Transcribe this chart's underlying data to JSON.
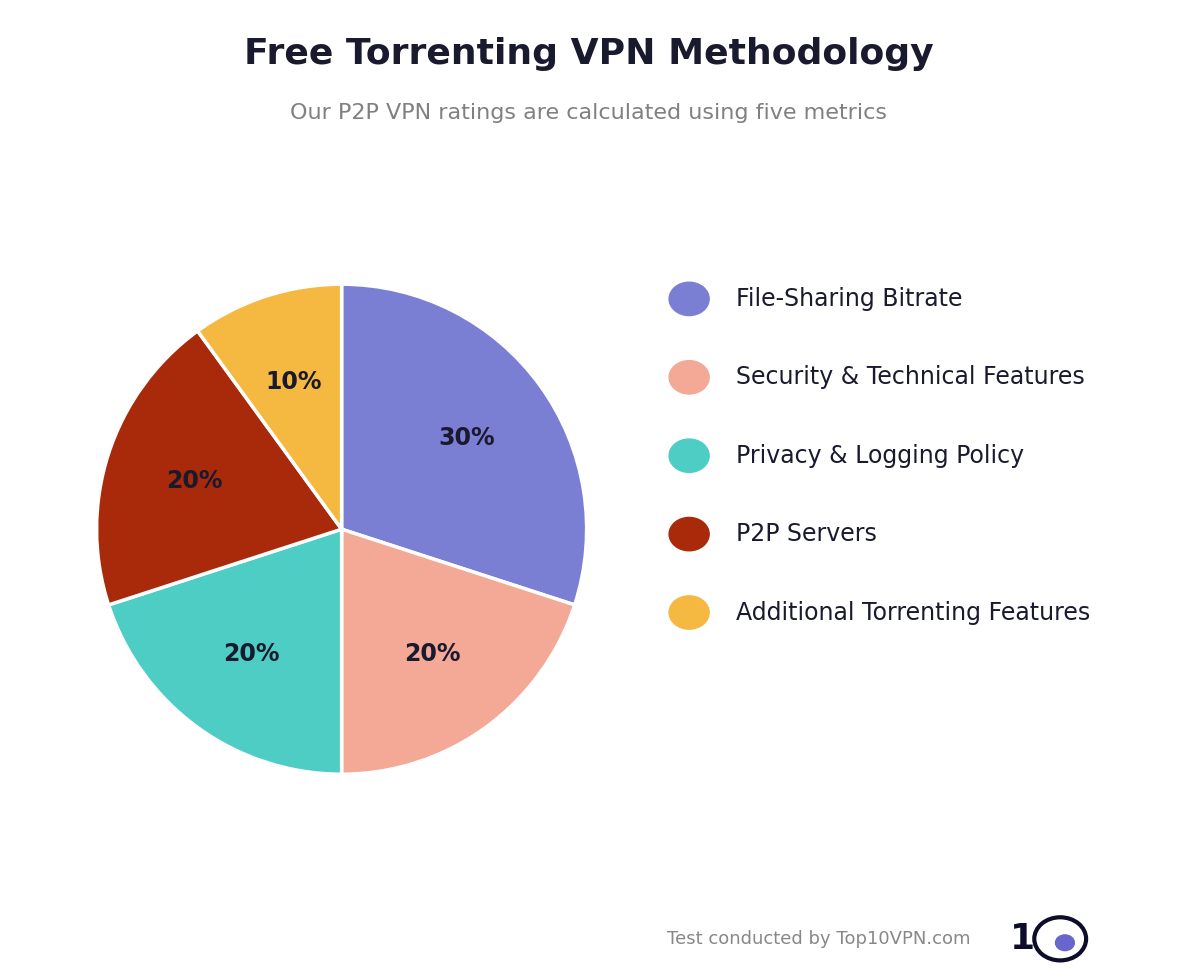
{
  "title": "Free Torrenting VPN Methodology",
  "subtitle": "Our P2P VPN ratings are calculated using five metrics",
  "slices": [
    30,
    20,
    20,
    20,
    10
  ],
  "labels": [
    "30%",
    "20%",
    "20%",
    "20%",
    "10%"
  ],
  "legend_labels": [
    "File-Sharing Bitrate",
    "Security & Technical Features",
    "Privacy & Logging Policy",
    "P2P Servers",
    "Additional Torrenting Features"
  ],
  "colors": [
    "#7B7FD4",
    "#F4A896",
    "#4ECDC4",
    "#A82A0A",
    "#F5B942"
  ],
  "startangle": 90,
  "footer": "Test conducted by Top10VPN.com",
  "background_color": "#FFFFFF",
  "title_fontsize": 26,
  "subtitle_fontsize": 16,
  "label_fontsize": 17,
  "legend_fontsize": 17,
  "text_color": "#1a1a2e",
  "subtitle_color": "#808080",
  "footer_color": "#888888",
  "logo_navy": "#0d0d2b",
  "logo_blue": "#6666cc"
}
